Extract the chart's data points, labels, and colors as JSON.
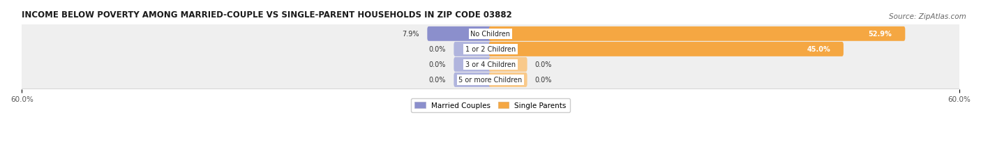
{
  "title": "INCOME BELOW POVERTY AMONG MARRIED-COUPLE VS SINGLE-PARENT HOUSEHOLDS IN ZIP CODE 03882",
  "source": "Source: ZipAtlas.com",
  "categories": [
    "No Children",
    "1 or 2 Children",
    "3 or 4 Children",
    "5 or more Children"
  ],
  "married_values": [
    7.9,
    0.0,
    0.0,
    0.0
  ],
  "single_values": [
    52.9,
    45.0,
    0.0,
    0.0
  ],
  "xlim": 60.0,
  "married_color": "#8b8fcc",
  "single_color": "#f5a742",
  "married_color_light": "#b0b4dd",
  "single_color_light": "#f9c98a",
  "row_bg_color": "#efefef",
  "title_fontsize": 8.5,
  "label_fontsize": 7.0,
  "tick_fontsize": 7.5,
  "legend_fontsize": 7.5,
  "source_fontsize": 7.5,
  "stub_size": 4.5
}
